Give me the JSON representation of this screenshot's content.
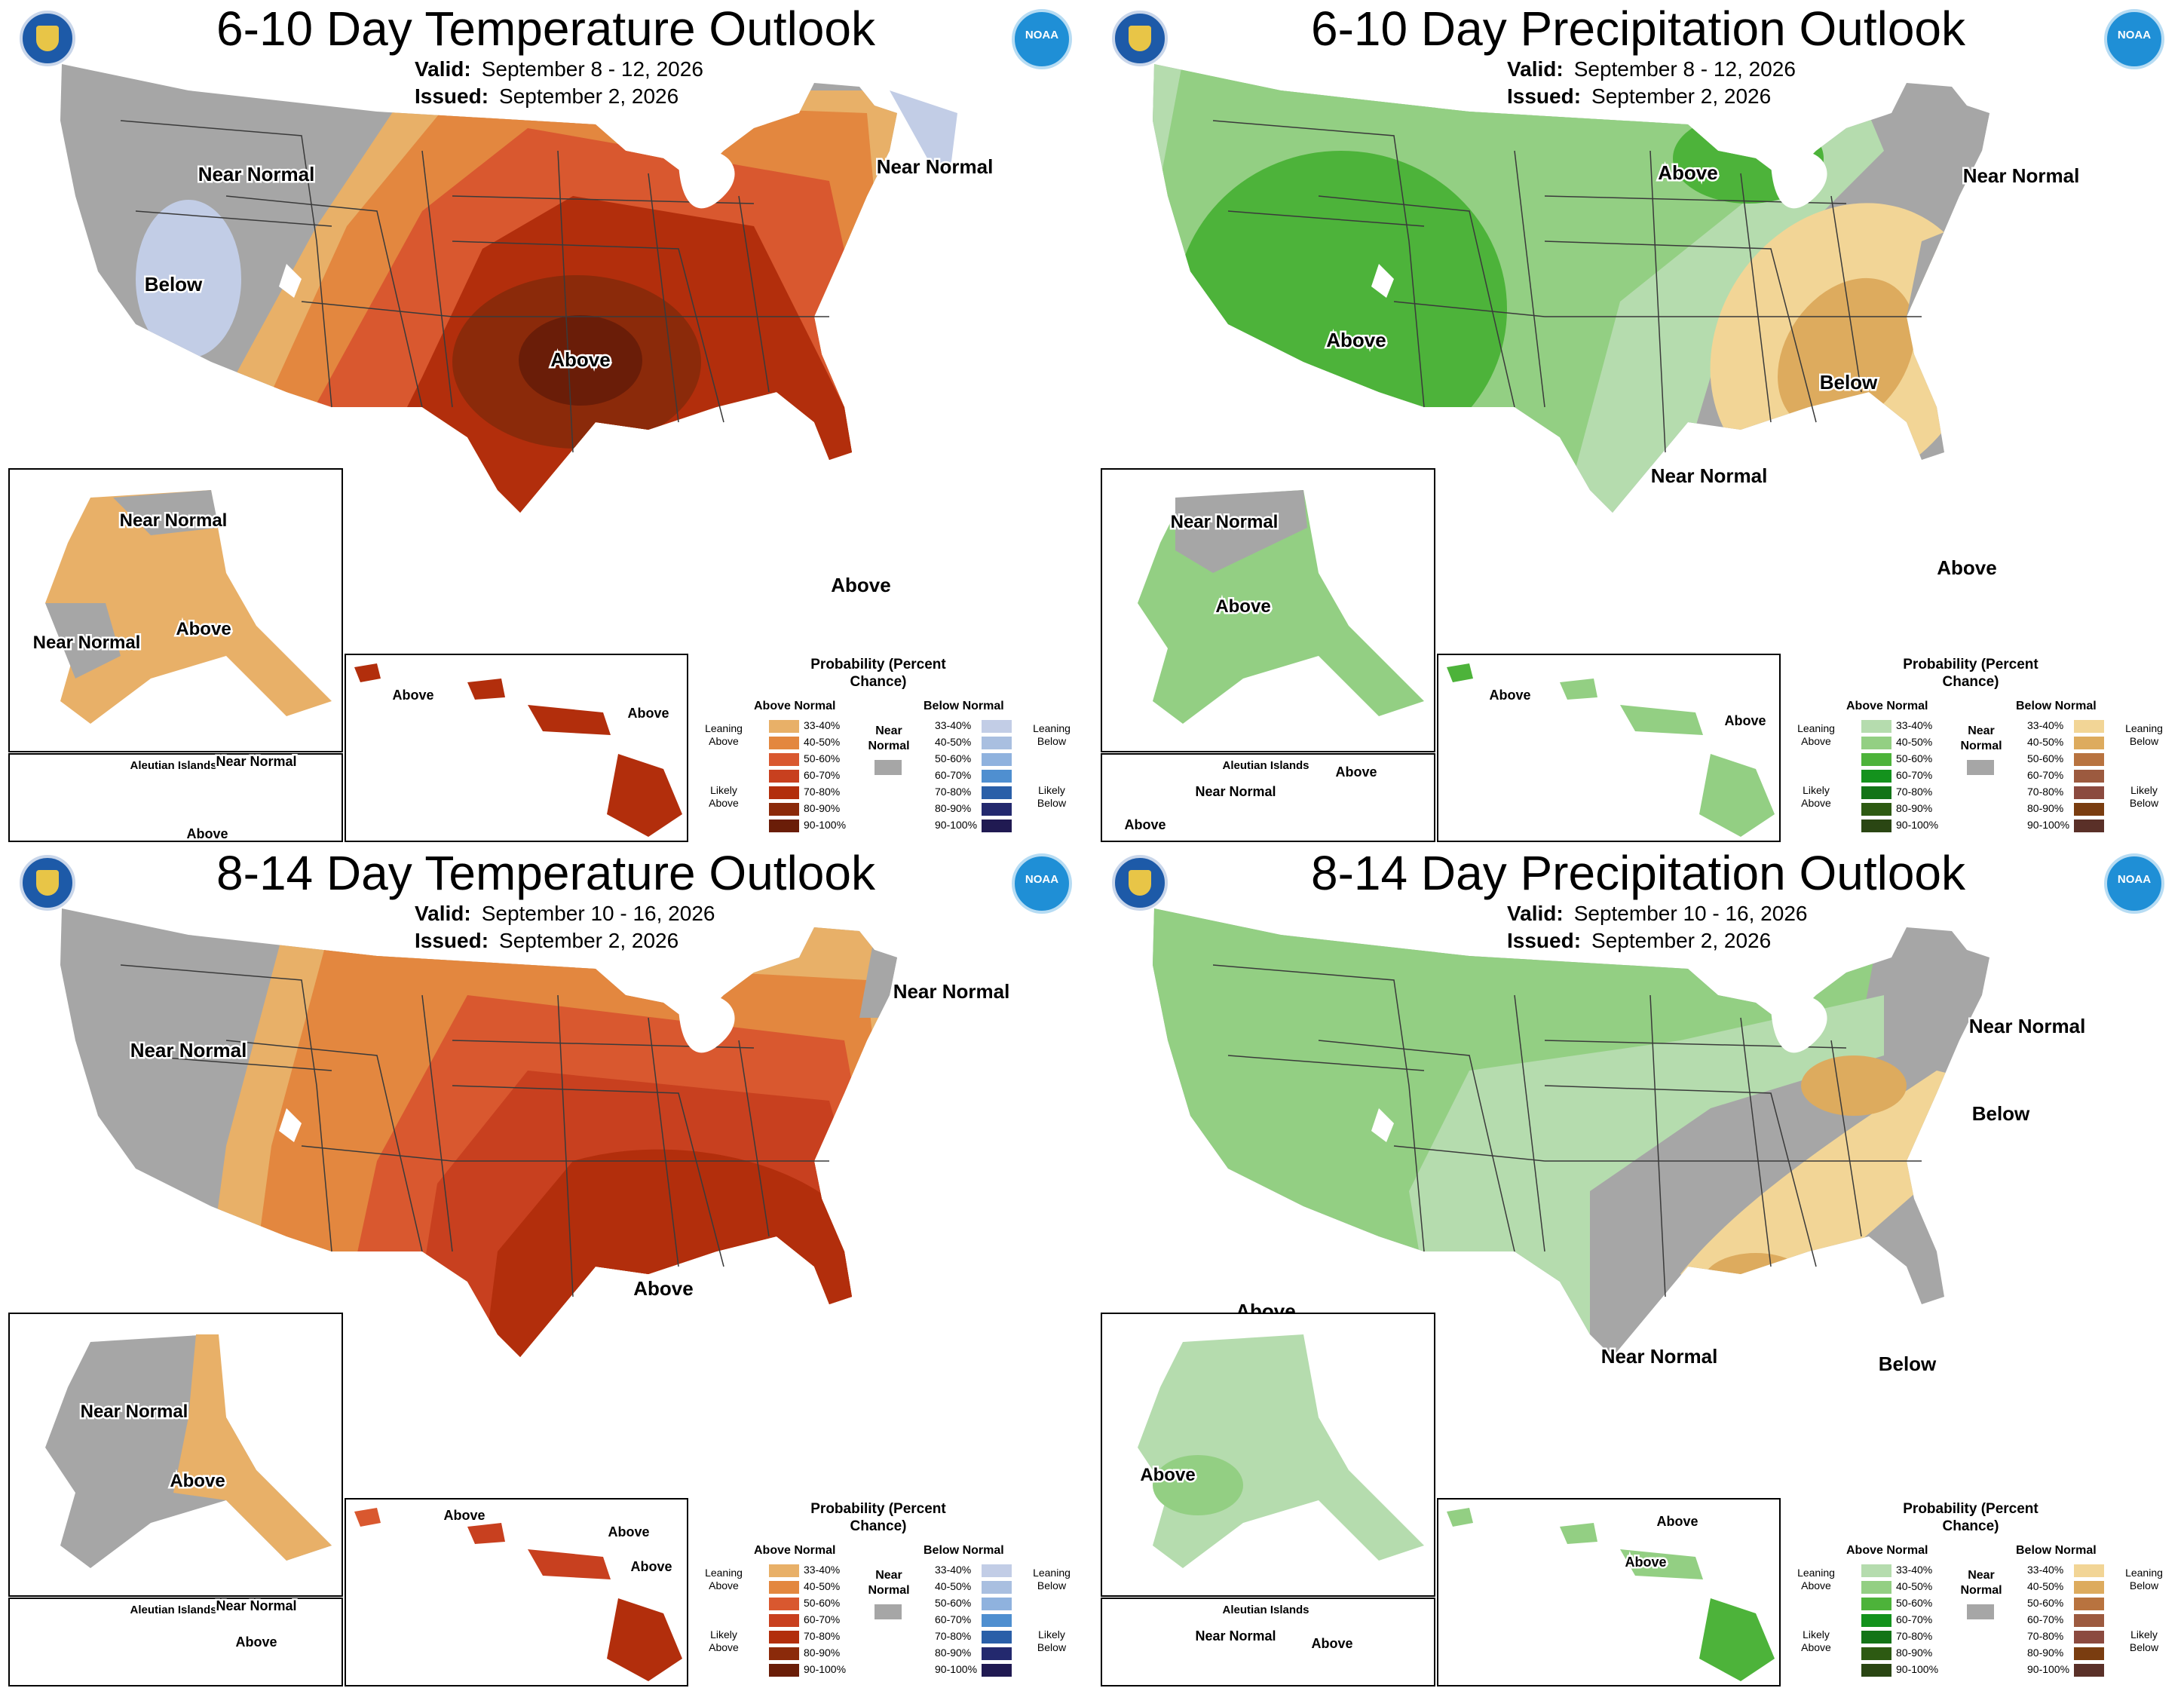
{
  "panels": [
    {
      "id": "temp610",
      "title": "6-10 Day Temperature Outlook",
      "valid_label": "Valid:",
      "valid": "September 8 - 12, 2026",
      "issued_label": "Issued:",
      "issued": "September 2, 2026",
      "noaa": "NOAA",
      "labels": {
        "near_normal_west": "Near Normal",
        "below_west": "Below",
        "near_normal_ne": "Near Normal",
        "above_center": "Above",
        "above_florida": "Above",
        "ak_near_normal_n": "Near Normal",
        "ak_near_normal_sw": "Near Normal",
        "ak_above": "Above",
        "aleutian_islands": "Aleutian Islands",
        "aleutian_near_normal": "Near Normal",
        "aleutian_above": "Above",
        "hi_above_1": "Above",
        "hi_above_2": "Above"
      }
    },
    {
      "id": "precip610",
      "title": "6-10 Day Precipitation Outlook",
      "valid_label": "Valid:",
      "valid": "September 8 - 12, 2026",
      "issued_label": "Issued:",
      "issued": "September 2, 2026",
      "noaa": "NOAA",
      "labels": {
        "above_north": "Above",
        "above_west": "Above",
        "near_normal_ne": "Near Normal",
        "below_east": "Below",
        "near_normal_south": "Near Normal",
        "above_florida": "Above",
        "ak_near_normal": "Near Normal",
        "ak_above": "Above",
        "aleutian_islands": "Aleutian Islands",
        "aleutian_above_1": "Above",
        "aleutian_near_normal": "Near Normal",
        "aleutian_above_2": "Above",
        "hi_above_1": "Above",
        "hi_above_2": "Above"
      }
    },
    {
      "id": "temp814",
      "title": "8-14 Day Temperature Outlook",
      "valid_label": "Valid:",
      "valid": "September 10 - 16, 2026",
      "issued_label": "Issued:",
      "issued": "September 2, 2026",
      "noaa": "NOAA",
      "labels": {
        "near_normal_west": "Near Normal",
        "near_normal_ne": "Near Normal",
        "above_center": "Above",
        "ak_near_normal": "Near Normal",
        "ak_above": "Above",
        "aleutian_islands": "Aleutian Islands",
        "aleutian_near_normal": "Near Normal",
        "aleutian_above": "Above",
        "hi_above_1": "Above",
        "hi_above_2": "Above",
        "hi_above_3": "Above"
      }
    },
    {
      "id": "precip814",
      "title": "8-14 Day Precipitation Outlook",
      "valid_label": "Valid:",
      "valid": "September 10 - 16, 2026",
      "issued_label": "Issued:",
      "issued": "September 2, 2026",
      "noaa": "NOAA",
      "labels": {
        "near_normal_ne": "Near Normal",
        "below_ne": "Below",
        "above_sw": "Above",
        "below_south": "Below",
        "near_normal_south": "Near Normal",
        "ak_above": "Above",
        "aleutian_islands": "Aleutian Islands",
        "aleutian_near_normal": "Near Normal",
        "aleutian_above": "Above",
        "hi_above_1": "Above",
        "hi_above_2": "Above"
      }
    }
  ],
  "legend_temp": {
    "title": "Probability (Percent Chance)",
    "above_head": "Above Normal",
    "below_head": "Below Normal",
    "near_normal": "Near Normal",
    "leaning_above": "Leaning Above",
    "likely_above": "Likely Above",
    "leaning_below": "Leaning Below",
    "likely_below": "Likely Below",
    "ranges": [
      "33-40%",
      "40-50%",
      "50-60%",
      "60-70%",
      "70-80%",
      "80-90%",
      "90-100%"
    ],
    "above_colors": [
      "#e8b068",
      "#e3873f",
      "#d9582f",
      "#c8401f",
      "#b22e0c",
      "#8b2a0a",
      "#6a1d08"
    ],
    "below_colors": [
      "#c2cde6",
      "#a9bfe0",
      "#8fb2de",
      "#4f8fd0",
      "#2a5fa8",
      "#23296e",
      "#201a52"
    ],
    "near_color": "#a6a6a6"
  },
  "legend_precip": {
    "title": "Probability (Percent Chance)",
    "above_head": "Above Normal",
    "below_head": "Below Normal",
    "near_normal": "Near Normal",
    "leaning_above": "Leaning Above",
    "likely_above": "Likely Above",
    "leaning_below": "Leaning Below",
    "likely_below": "Likely Below",
    "ranges": [
      "33-40%",
      "40-50%",
      "50-60%",
      "60-70%",
      "70-80%",
      "80-90%",
      "90-100%"
    ],
    "above_colors": [
      "#b5dcae",
      "#93cf83",
      "#4db33a",
      "#14921d",
      "#137417",
      "#2d5a12",
      "#2a4613"
    ],
    "below_colors": [
      "#f2d596",
      "#ddab5e",
      "#b8733f",
      "#9c5a3f",
      "#8b4a3f",
      "#7a3d10",
      "#5a3028"
    ],
    "near_color": "#a6a6a6"
  },
  "colors": {
    "near_normal": "#a6a6a6",
    "state_line": "#3a3a3a"
  }
}
